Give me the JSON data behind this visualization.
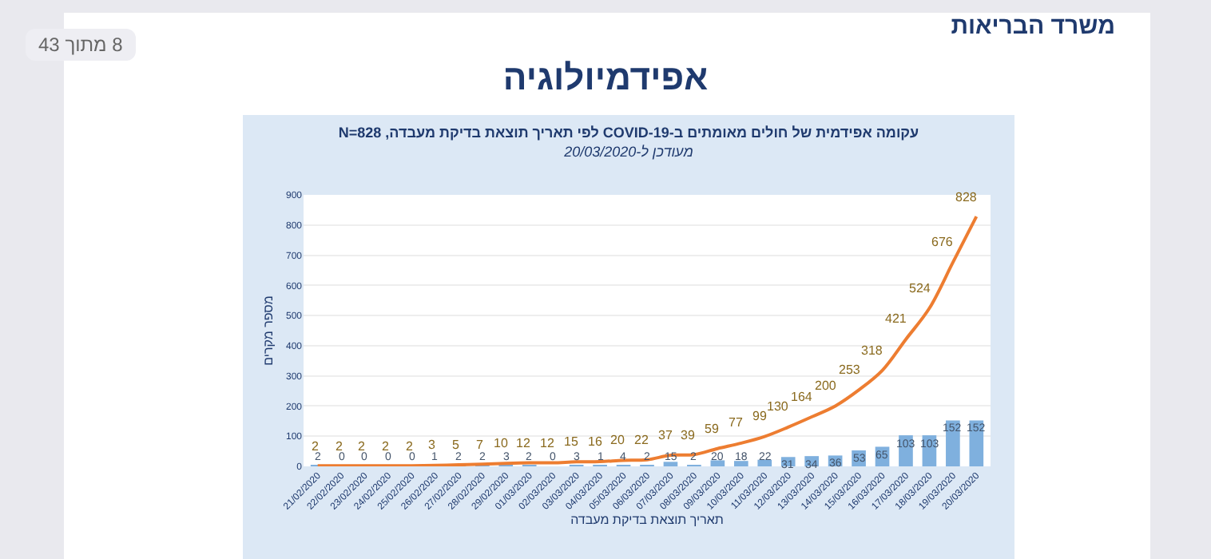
{
  "chart_data": {
    "type": "bar",
    "title": "עקומה אפידמית של חולים מאומתים ב-COVID-19 לפי תאריך תוצאת בדיקת מעבדה, N=828",
    "subtitle": "מעודכן ל-20/03/2020",
    "xlabel": "תאריך תוצאת בדיקת מעבדה",
    "ylabel": "מספר מקרים",
    "annotations": [
      "אפידמיולוגיה",
      "משרד הבריאות",
      "8 מתוך 43"
    ],
    "categories": [
      "21/02/2020",
      "22/02/2020",
      "23/02/2020",
      "24/02/2020",
      "25/02/2020",
      "26/02/2020",
      "27/02/2020",
      "28/02/2020",
      "29/02/2020",
      "01/03/2020",
      "02/03/2020",
      "03/03/2020",
      "04/03/2020",
      "05/03/2020",
      "06/03/2020",
      "07/03/2020",
      "08/03/2020",
      "09/03/2020",
      "10/03/2020",
      "11/03/2020",
      "12/03/2020",
      "13/03/2020",
      "14/03/2020",
      "15/03/2020",
      "16/03/2020",
      "17/03/2020",
      "18/03/2020",
      "19/03/2020",
      "20/03/2020"
    ],
    "series": [
      {
        "color": "#7fb0de",
        "values": [
          2,
          0,
          0,
          0,
          0,
          1,
          2,
          2,
          3,
          2,
          0,
          3,
          1,
          4,
          2,
          15,
          2,
          20,
          18,
          22,
          31,
          34,
          36,
          53,
          65,
          103,
          103,
          152,
          152
        ]
      },
      {
        "type": "line",
        "color": "#ed7d31",
        "values": [
          2,
          2,
          2,
          2,
          2,
          3,
          5,
          7,
          10,
          12,
          12,
          15,
          16,
          20,
          22,
          37,
          39,
          59,
          77,
          99,
          130,
          164,
          200,
          253,
          318,
          421,
          524,
          676,
          828
        ]
      }
    ],
    "ylim": [
      0,
      900
    ],
    "yticks": [
      0,
      100,
      200,
      300,
      400,
      500,
      600,
      700,
      800,
      900
    ],
    "grid": "y",
    "legend": false,
    "marker": "none",
    "line_style": "solid",
    "data_labels": true
  }
}
